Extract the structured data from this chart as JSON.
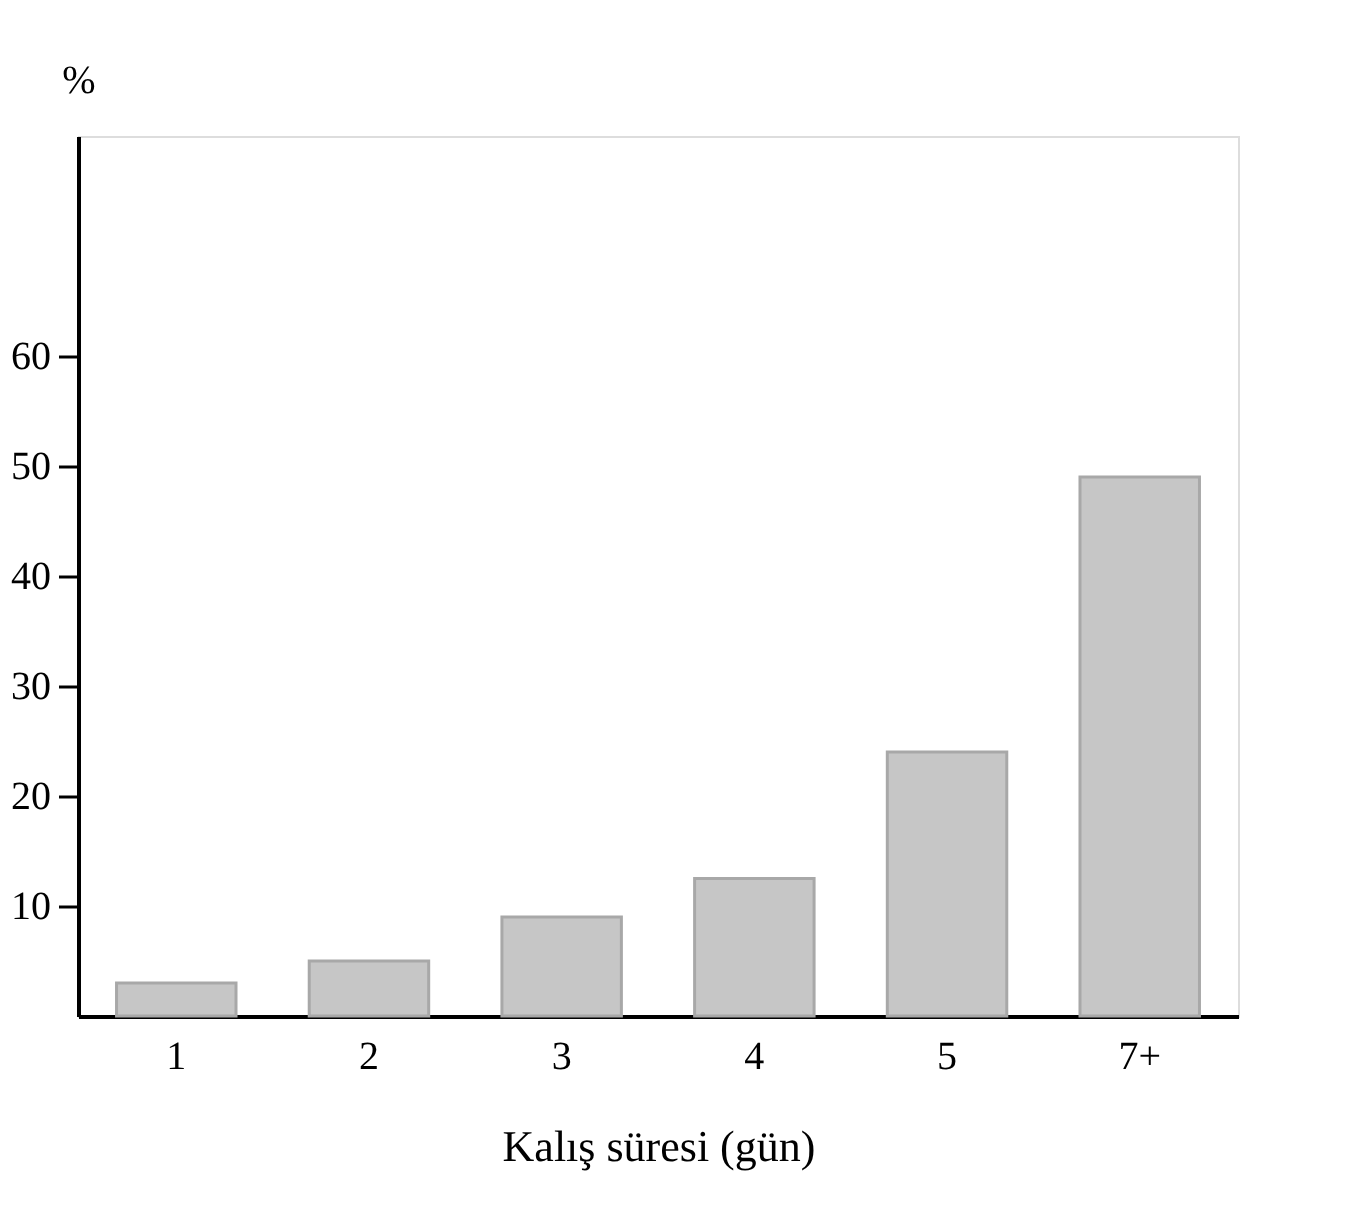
{
  "chart_data": {
    "type": "bar",
    "categories": [
      "1",
      "2",
      "3",
      "4",
      "5",
      "7+"
    ],
    "values": [
      3,
      5,
      9,
      12.5,
      24,
      49
    ],
    "color": "#c6c6c6",
    "ylabel": "%",
    "xlabel": "Kalış süresi (gün)",
    "ylim": [
      0,
      80
    ],
    "yticks": [
      10,
      20,
      30,
      40,
      50,
      60
    ],
    "grid": false
  }
}
